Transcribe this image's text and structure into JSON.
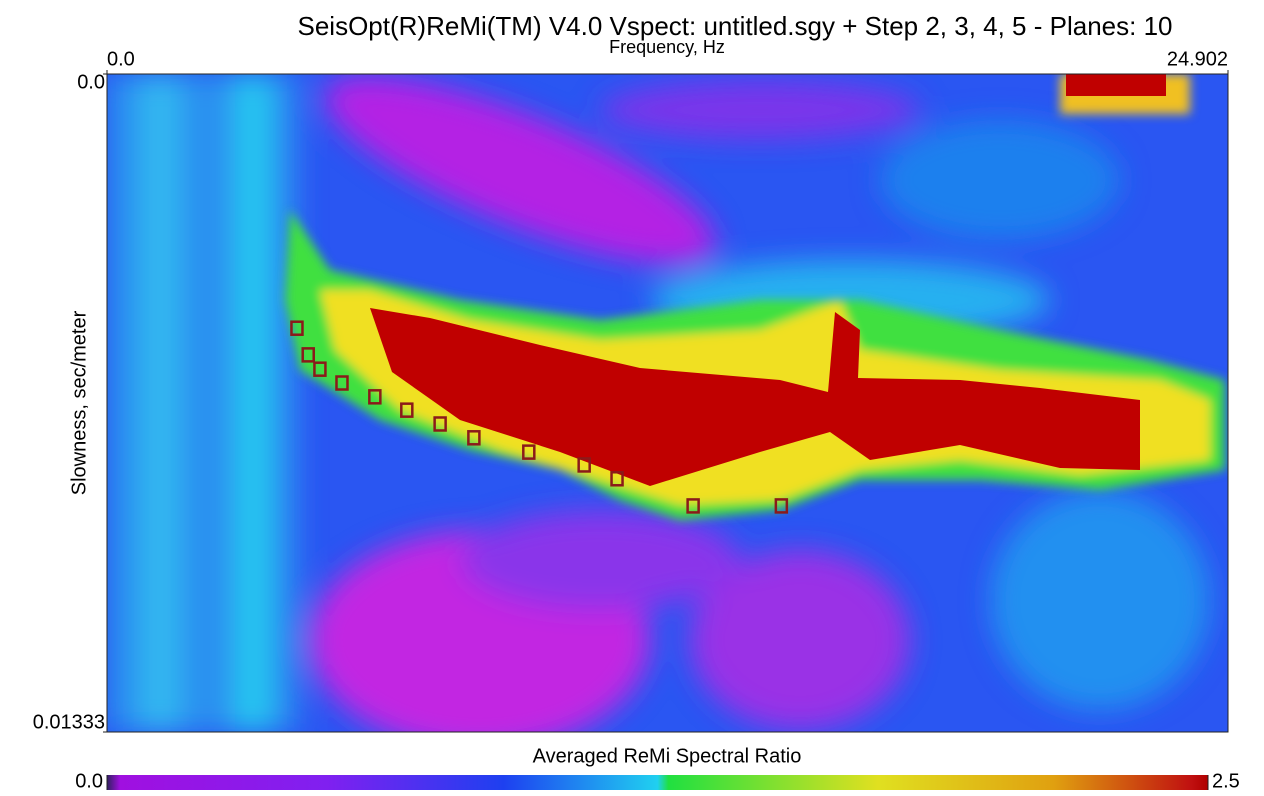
{
  "chart_data": {
    "type": "scatter",
    "title": "SeisOpt(R)ReMi(TM) V4.0 Vspect: untitled.sgy + Step 2,  3,  4, 5 - Planes: 10",
    "x_label": "Frequency, Hz",
    "y_label": "Slowness, sec/meter",
    "x": [
      4.22,
      4.47,
      4.73,
      5.22,
      5.95,
      6.66,
      7.4,
      8.15,
      9.37,
      10.6,
      11.33,
      13.02,
      14.98
    ],
    "values": [
      0.00515,
      0.00569,
      0.00598,
      0.00626,
      0.00654,
      0.00681,
      0.00709,
      0.00737,
      0.00766,
      0.00792,
      0.0082,
      0.00875,
      0.00875
    ],
    "color": "#8b1a1a",
    "xlim": [
      0,
      24.902
    ],
    "xticks": [
      {
        "value": 0,
        "label": "0.0"
      },
      24.902
    ],
    "ylim": [
      0,
      0.01333
    ],
    "yticks": [
      {
        "value": 0,
        "label": "0.0"
      },
      0.01333
    ],
    "y_inverted": true,
    "colorbar": {
      "title": "Averaged ReMi Spectral Ratio",
      "lim": [
        0,
        2.5
      ],
      "ticks": [
        {
          "value": 0,
          "label": "0.0"
        },
        2.5
      ]
    }
  }
}
